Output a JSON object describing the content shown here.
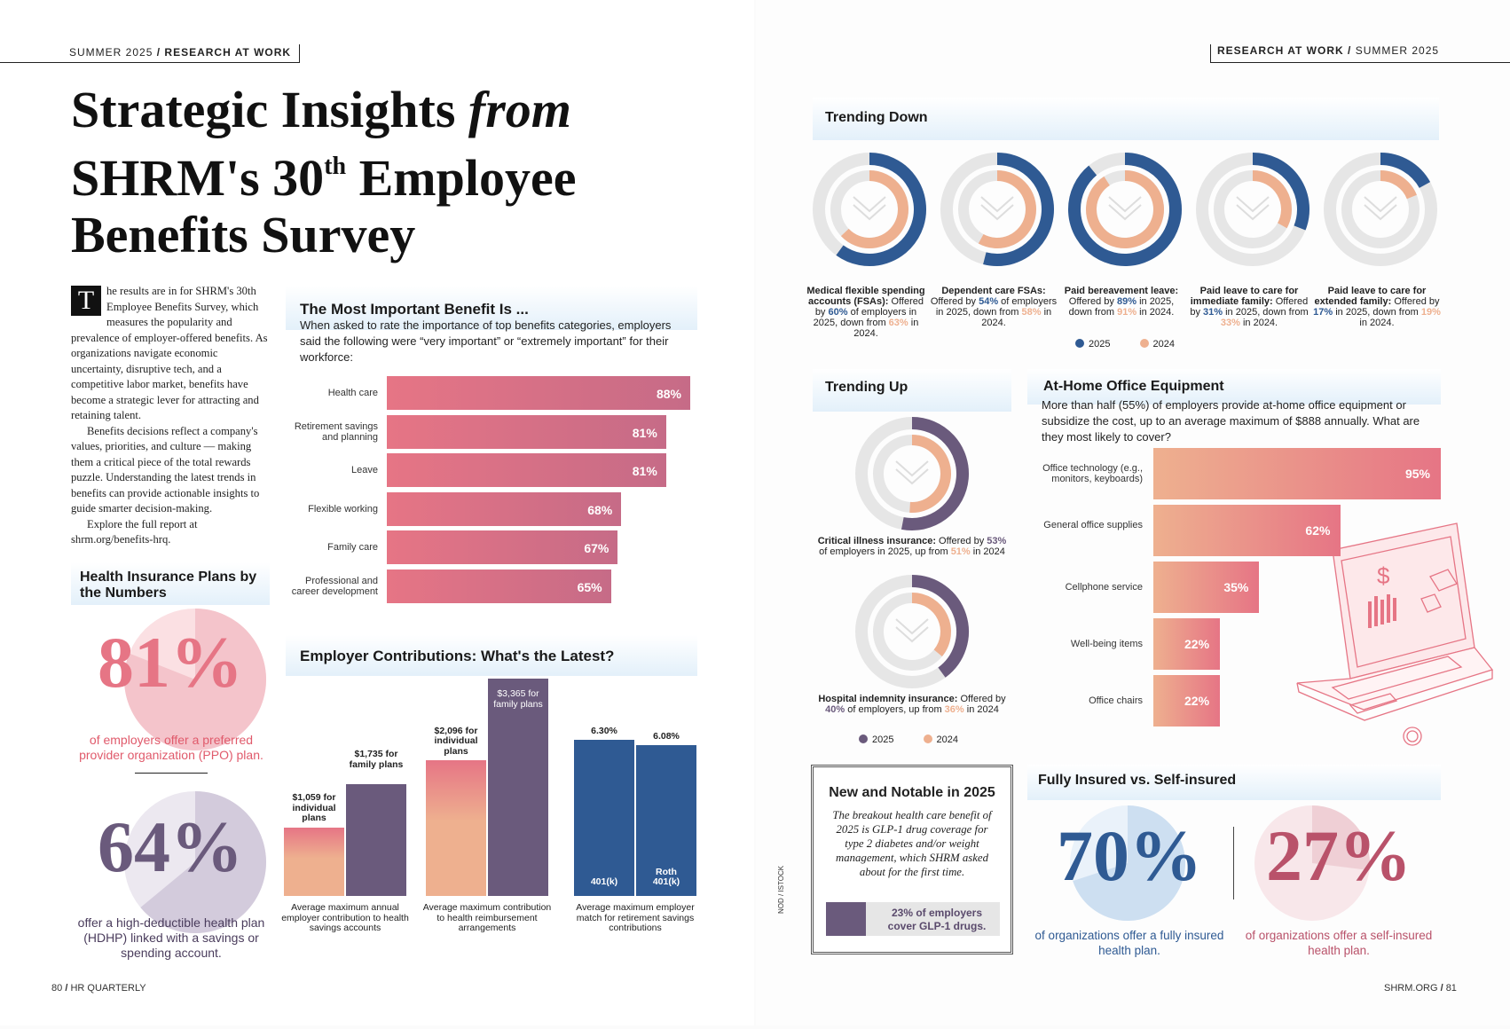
{
  "left_header": {
    "issue": "SUMMER 2025",
    "slash": "/",
    "section": "RESEARCH AT WORK"
  },
  "right_header": {
    "section": "RESEARCH AT WORK",
    "slash": "/",
    "issue": "SUMMER 2025"
  },
  "title": {
    "line1a": "Strategic Insights",
    "line1b": "from",
    "line2a": "SHRM's 30",
    "line2sup": "th",
    "line2b": "Employee",
    "line3": "Benefits Survey"
  },
  "intro": {
    "dropcap": "T",
    "p1": "he results are in for SHRM's 30th Employee Benefits Survey, which measures the popularity and prevalence of employer-offered benefits. As organizations navigate economic uncertainty, disruptive tech, and a competitive labor market, benefits have become a strategic lever for attracting and retaining talent.",
    "p2": "Benefits decisions reflect a company's values, priorities, and culture — making them a critical piece of the total rewards puzzle. Understanding the latest trends in benefits can provide actionable insights to guide smarter decision-making.",
    "p3": "Explore the full report at shrm.org/benefits-hrq."
  },
  "health": {
    "heading": "Health Insurance Plans by the Numbers",
    "stat1": "81%",
    "cap1": "of employers offer a preferred provider organization (PPO) plan.",
    "stat2": "64%",
    "cap2": "offer a high-deductible health plan (HDHP) linked with a savings or spending account."
  },
  "important": {
    "heading": "The Most Important Benefit Is ...",
    "desc": "When asked to rate the importance of top benefits categories, employers said the following were “very important” or “extremely important” for their workforce:"
  },
  "contrib": {
    "heading": "Employer Contributions: What's the Latest?"
  },
  "trending_down": {
    "heading": "Trending Down"
  },
  "trending_up": {
    "heading": "Trending Up"
  },
  "home_office": {
    "heading": "At-Home Office Equipment",
    "desc": "More than half (55%) of employers provide at-home office equipment or subsidize the cost, up to an average maximum of $888 annually. What are they most likely to cover?"
  },
  "legend": {
    "y1": "2025",
    "y2": "2024"
  },
  "colors": {
    "pink": "#e67585",
    "navy": "#2f5a93",
    "peach": "#eeb08f",
    "plum": "#6a5a7c",
    "gray": "#e6e6e6",
    "light_blue": "#e3f0fa"
  },
  "notable": {
    "heading": "New and Notable in 2025",
    "body": "The breakout health care benefit of 2025 is GLP-1 drug coverage for type 2 diabetes and/or weight management, which SHRM asked about for the first time.",
    "stat": "23% of employers cover GLP-1 drugs.",
    "glp1_value": 23
  },
  "insured": {
    "heading": "Fully Insured vs. Self-insured",
    "stat1": "70%",
    "cap1": "of organizations offer a fully insured health plan.",
    "stat2": "27%",
    "cap2": "of organizations offer a self-insured health plan."
  },
  "credit": "NOD / ISTOCK",
  "footer_left": {
    "num": "80",
    "slash": "/",
    "pub": "HR QUARTERLY"
  },
  "footer_right": {
    "site": "SHRM.ORG",
    "slash": "/",
    "num": "81"
  },
  "chart_data": [
    {
      "type": "bar",
      "title": "The Most Important Benefit Is ...",
      "categories": [
        "Health care",
        "Retirement savings and planning",
        "Leave",
        "Flexible working",
        "Family care",
        "Professional and career development"
      ],
      "values": [
        88,
        81,
        81,
        68,
        67,
        65
      ],
      "labels": [
        "88%",
        "81%",
        "81%",
        "68%",
        "67%",
        "65%"
      ]
    },
    {
      "type": "bar",
      "title": "Employer Contributions: What's the Latest?",
      "groups": [
        {
          "caption": "Average maximum annual employer contribution to health savings accounts",
          "bars": [
            {
              "value": 1059,
              "label": "$1,059 for individual plans",
              "color": "#eeb08f"
            },
            {
              "value": 1735,
              "label": "$1,735 for family plans",
              "color": "#6a5a7c"
            }
          ]
        },
        {
          "caption": "Average maximum contribution to health reimbursement arrangements",
          "bars": [
            {
              "value": 2096,
              "label": "$2,096 for individual plans",
              "color": "#eeb08f"
            },
            {
              "value": 3365,
              "label": "$3,365 for family plans",
              "color": "#6a5a7c"
            }
          ]
        },
        {
          "caption": "Average maximum employer match for retirement savings contributions",
          "bars": [
            {
              "value": 6.3,
              "label": "6.30%",
              "inner": "401(k)",
              "color": "#2f5a93"
            },
            {
              "value": 6.08,
              "label": "6.08%",
              "inner": "Roth 401(k)",
              "color": "#2f5a93"
            }
          ]
        }
      ]
    },
    {
      "type": "pie",
      "title": "Trending Down",
      "items": [
        {
          "v2025": 60,
          "v2024": 63,
          "bold": "Medical flexible spending accounts (FSAs):",
          "pre": "Offered by",
          "p2025": "60%",
          "mid": "of employers in 2025, down from",
          "p2024": "63%",
          "post": "in 2024."
        },
        {
          "v2025": 54,
          "v2024": 58,
          "bold": "Dependent care FSAs:",
          "pre": "Offered by",
          "p2025": "54%",
          "mid": "of employers in 2025, down from",
          "p2024": "58%",
          "post": "in 2024."
        },
        {
          "v2025": 89,
          "v2024": 91,
          "bold": "Paid bereavement leave:",
          "pre": "Offered by",
          "p2025": "89%",
          "mid": "in 2025, down from",
          "p2024": "91%",
          "post": "in 2024."
        },
        {
          "v2025": 31,
          "v2024": 33,
          "bold": "Paid leave to care for immediate family:",
          "pre": "Offered by",
          "p2025": "31%",
          "mid": "in 2025, down from",
          "p2024": "33%",
          "post": "in 2024."
        },
        {
          "v2025": 17,
          "v2024": 19,
          "bold": "Paid leave to care for extended family:",
          "pre": "Offered by",
          "p2025": "17%",
          "mid": "in 2025, down from",
          "p2024": "19%",
          "post": "in 2024."
        }
      ]
    },
    {
      "type": "pie",
      "title": "Trending Up",
      "items": [
        {
          "v2025": 53,
          "v2024": 51,
          "bold": "Critical illness insurance:",
          "pre": "Offered by",
          "p2025": "53%",
          "mid": "of employers in 2025, up from",
          "p2024": "51%",
          "post": "in 2024"
        },
        {
          "v2025": 40,
          "v2024": 36,
          "bold": "Hospital indemnity insurance:",
          "pre": "Offered by",
          "p2025": "40%",
          "mid": "of employers, up from",
          "p2024": "36%",
          "post": "in 2024"
        }
      ]
    },
    {
      "type": "bar",
      "title": "At-Home Office Equipment",
      "categories": [
        "Office technology (e.g., monitors, keyboards)",
        "General office supplies",
        "Cellphone service",
        "Well-being items",
        "Office chairs"
      ],
      "values": [
        95,
        62,
        35,
        22,
        22
      ],
      "labels": [
        "95%",
        "62%",
        "35%",
        "22%",
        "22%"
      ]
    },
    {
      "type": "pie",
      "title": "Health Insurance Plans by the Numbers",
      "items": [
        {
          "value": 81,
          "label": "81%"
        },
        {
          "value": 64,
          "label": "64%"
        }
      ]
    },
    {
      "type": "pie",
      "title": "Fully Insured vs. Self-insured",
      "items": [
        {
          "value": 70,
          "label": "70%"
        },
        {
          "value": 27,
          "label": "27%"
        }
      ]
    }
  ]
}
